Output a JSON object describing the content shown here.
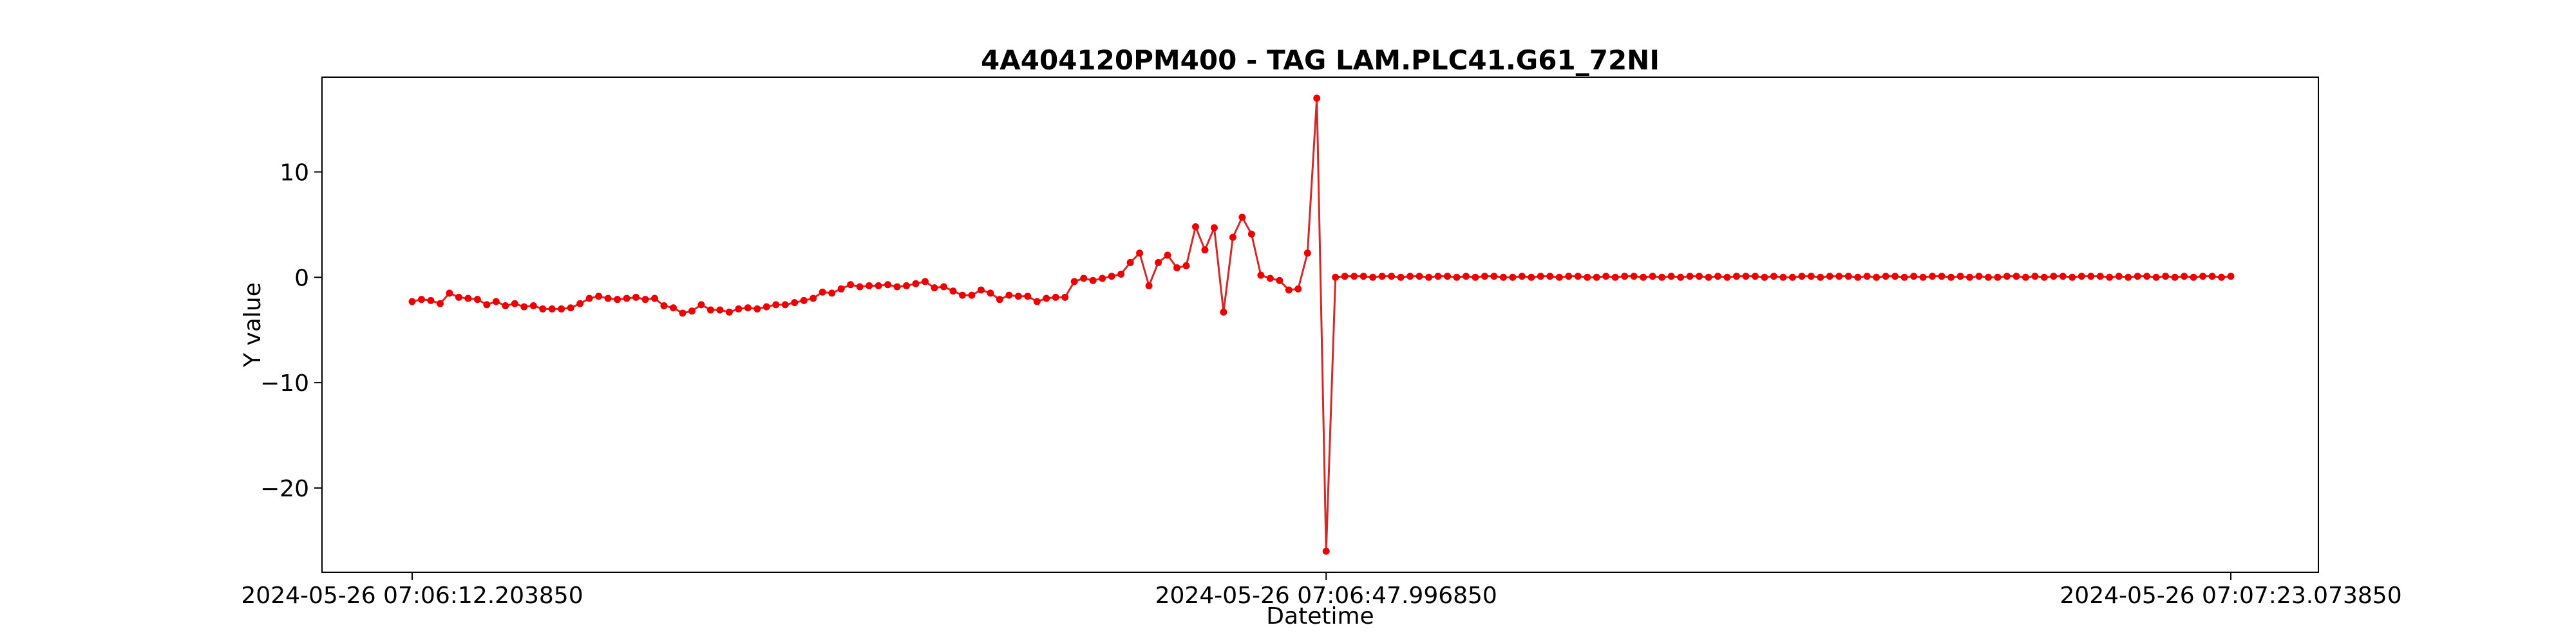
{
  "chart_data": {
    "type": "line",
    "title": "4A404120PM400 - TAG LAM.PLC41.G61_72NI",
    "xlabel": "Datetime",
    "ylabel": "Y value",
    "ylim": [
      -28,
      19
    ],
    "grid": false,
    "legend": "none",
    "x_tick_labels": [
      "2024-05-26 07:06:12.203850",
      "2024-05-26 07:06:47.996850",
      "2024-05-26 07:07:23.073850"
    ],
    "y_ticks": [
      10,
      0,
      -10,
      -20
    ],
    "y_tick_labels": [
      "10",
      "0",
      "−10",
      "−20"
    ],
    "line_color": "#d62728",
    "marker_color": "#ee0000",
    "series": [
      {
        "values": [
          -2.3,
          -2.1,
          -2.2,
          -2.5,
          -1.5,
          -1.9,
          -2.0,
          -2.1,
          -2.6,
          -2.3,
          -2.7,
          -2.5,
          -2.8,
          -2.7,
          -3.0,
          -3.0,
          -3.0,
          -2.9,
          -2.5,
          -2.0,
          -1.8,
          -2.0,
          -2.1,
          -2.0,
          -1.9,
          -2.1,
          -2.0,
          -2.7,
          -2.9,
          -3.4,
          -3.2,
          -2.6,
          -3.1,
          -3.1,
          -3.3,
          -3.0,
          -2.9,
          -3.0,
          -2.8,
          -2.6,
          -2.6,
          -2.4,
          -2.2,
          -2.0,
          -1.4,
          -1.5,
          -1.1,
          -0.7,
          -0.9,
          -0.8,
          -0.8,
          -0.7,
          -0.9,
          -0.8,
          -0.6,
          -0.4,
          -1.0,
          -0.9,
          -1.3,
          -1.7,
          -1.7,
          -1.2,
          -1.5,
          -2.1,
          -1.7,
          -1.8,
          -1.8,
          -2.3,
          -2.0,
          -1.9,
          -1.9,
          -0.4,
          -0.1,
          -0.3,
          -0.1,
          0.1,
          0.3,
          1.4,
          2.3,
          -0.8,
          1.4,
          2.1,
          0.9,
          1.1,
          4.8,
          2.6,
          4.7,
          -3.3,
          3.8,
          5.7,
          4.1,
          0.2,
          -0.1,
          -0.3,
          -1.2,
          -1.1,
          2.3,
          17.0,
          -26.0,
          0.0,
          0.1,
          0.1,
          0.1,
          0.0,
          0.1,
          0.1,
          0.0,
          0.1,
          0.1,
          0.0,
          0.1,
          0.1,
          0.0,
          0.1,
          0.0,
          0.1,
          0.1,
          0.0,
          0.0,
          0.1,
          0.0,
          0.1,
          0.1,
          0.0,
          0.1,
          0.1,
          0.0,
          0.0,
          0.1,
          0.0,
          0.1,
          0.1,
          0.0,
          0.1,
          0.0,
          0.1,
          0.0,
          0.1,
          0.1,
          0.0,
          0.1,
          0.0,
          0.1,
          0.1,
          0.1,
          0.0,
          0.1,
          0.0,
          0.0,
          0.1,
          0.1,
          0.0,
          0.1,
          0.1,
          0.1,
          0.0,
          0.1,
          0.0,
          0.1,
          0.1,
          0.0,
          0.1,
          0.0,
          0.1,
          0.1,
          0.0,
          0.1,
          0.0,
          0.1,
          0.0,
          0.0,
          0.1,
          0.1,
          0.0,
          0.1,
          0.0,
          0.1,
          0.1,
          0.0,
          0.1,
          0.1,
          0.1,
          0.0,
          0.1,
          0.0,
          0.1,
          0.1,
          0.0,
          0.1,
          0.0,
          0.1,
          0.0,
          0.1,
          0.1,
          0.0,
          0.1
        ]
      }
    ]
  }
}
